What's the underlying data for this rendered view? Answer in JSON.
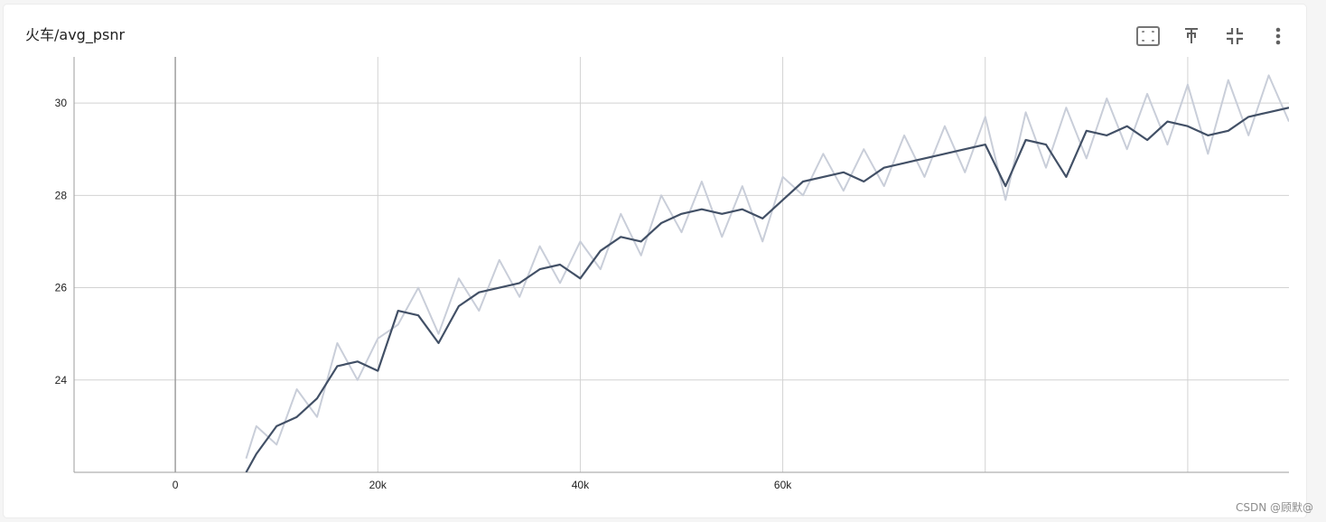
{
  "card": {
    "title": "火车/avg_psnr",
    "toolbar": [
      {
        "name": "fit-domain-button",
        "icon": "fit-to-screen-icon"
      },
      {
        "name": "pin-button",
        "icon": "pin-icon"
      },
      {
        "name": "collapse-button",
        "icon": "collapse-icon"
      },
      {
        "name": "more-menu-button",
        "icon": "more-vert-icon"
      }
    ]
  },
  "watermark": "CSDN @顾默@",
  "colors": {
    "smoothed": "#425066",
    "raw": "#c9ced9",
    "grid": "#d2d2d2",
    "axis": "#9e9e9e"
  },
  "chart_data": {
    "type": "line",
    "title": "火车/avg_psnr",
    "xlim": [
      -10000,
      110000
    ],
    "ylim": [
      22,
      31
    ],
    "x_ticks": [
      0,
      20000,
      40000,
      60000
    ],
    "x_tick_labels": [
      "0",
      "20k",
      "40k",
      "60k"
    ],
    "y_ticks": [
      24,
      26,
      28,
      30
    ],
    "y_tick_labels": [
      "24",
      "26",
      "28",
      "30"
    ],
    "grid": true,
    "series": [
      {
        "role": "smoothed",
        "x": [
          7000,
          8000,
          10000,
          12000,
          14000,
          16000,
          18000,
          20000,
          22000,
          24000,
          26000,
          28000,
          30000,
          32000,
          34000,
          36000,
          38000,
          40000,
          42000,
          44000,
          46000,
          48000,
          50000,
          52000,
          54000,
          56000,
          58000,
          60000,
          62000,
          64000,
          66000,
          68000,
          70000,
          72000,
          74000,
          76000,
          78000,
          80000,
          82000,
          84000,
          86000,
          88000,
          90000,
          92000,
          94000,
          96000,
          98000,
          100000,
          102000,
          104000,
          106000,
          108000,
          110000
        ],
        "y": [
          22.0,
          22.4,
          23.0,
          23.2,
          23.6,
          24.3,
          24.4,
          24.2,
          25.5,
          25.4,
          24.8,
          25.6,
          25.9,
          26.0,
          26.1,
          26.4,
          26.5,
          26.2,
          26.8,
          27.1,
          27.0,
          27.4,
          27.6,
          27.7,
          27.6,
          27.7,
          27.5,
          27.9,
          28.3,
          28.4,
          28.5,
          28.3,
          28.6,
          28.7,
          28.8,
          28.9,
          29.0,
          29.1,
          28.2,
          29.2,
          29.1,
          28.4,
          29.4,
          29.3,
          29.5,
          29.2,
          29.6,
          29.5,
          29.3,
          29.4,
          29.7,
          29.8,
          29.9
        ]
      },
      {
        "role": "raw",
        "x": [
          7000,
          8000,
          10000,
          12000,
          14000,
          16000,
          18000,
          20000,
          22000,
          24000,
          26000,
          28000,
          30000,
          32000,
          34000,
          36000,
          38000,
          40000,
          42000,
          44000,
          46000,
          48000,
          50000,
          52000,
          54000,
          56000,
          58000,
          60000,
          62000,
          64000,
          66000,
          68000,
          70000,
          72000,
          74000,
          76000,
          78000,
          80000,
          82000,
          84000,
          86000,
          88000,
          90000,
          92000,
          94000,
          96000,
          98000,
          100000,
          102000,
          104000,
          106000,
          108000,
          110000
        ],
        "y": [
          22.3,
          23.0,
          22.6,
          23.8,
          23.2,
          24.8,
          24.0,
          24.9,
          25.2,
          26.0,
          25.0,
          26.2,
          25.5,
          26.6,
          25.8,
          26.9,
          26.1,
          27.0,
          26.4,
          27.6,
          26.7,
          28.0,
          27.2,
          28.3,
          27.1,
          28.2,
          27.0,
          28.4,
          28.0,
          28.9,
          28.1,
          29.0,
          28.2,
          29.3,
          28.4,
          29.5,
          28.5,
          29.7,
          27.9,
          29.8,
          28.6,
          29.9,
          28.8,
          30.1,
          29.0,
          30.2,
          29.1,
          30.4,
          28.9,
          30.5,
          29.3,
          30.6,
          29.6
        ]
      }
    ]
  }
}
